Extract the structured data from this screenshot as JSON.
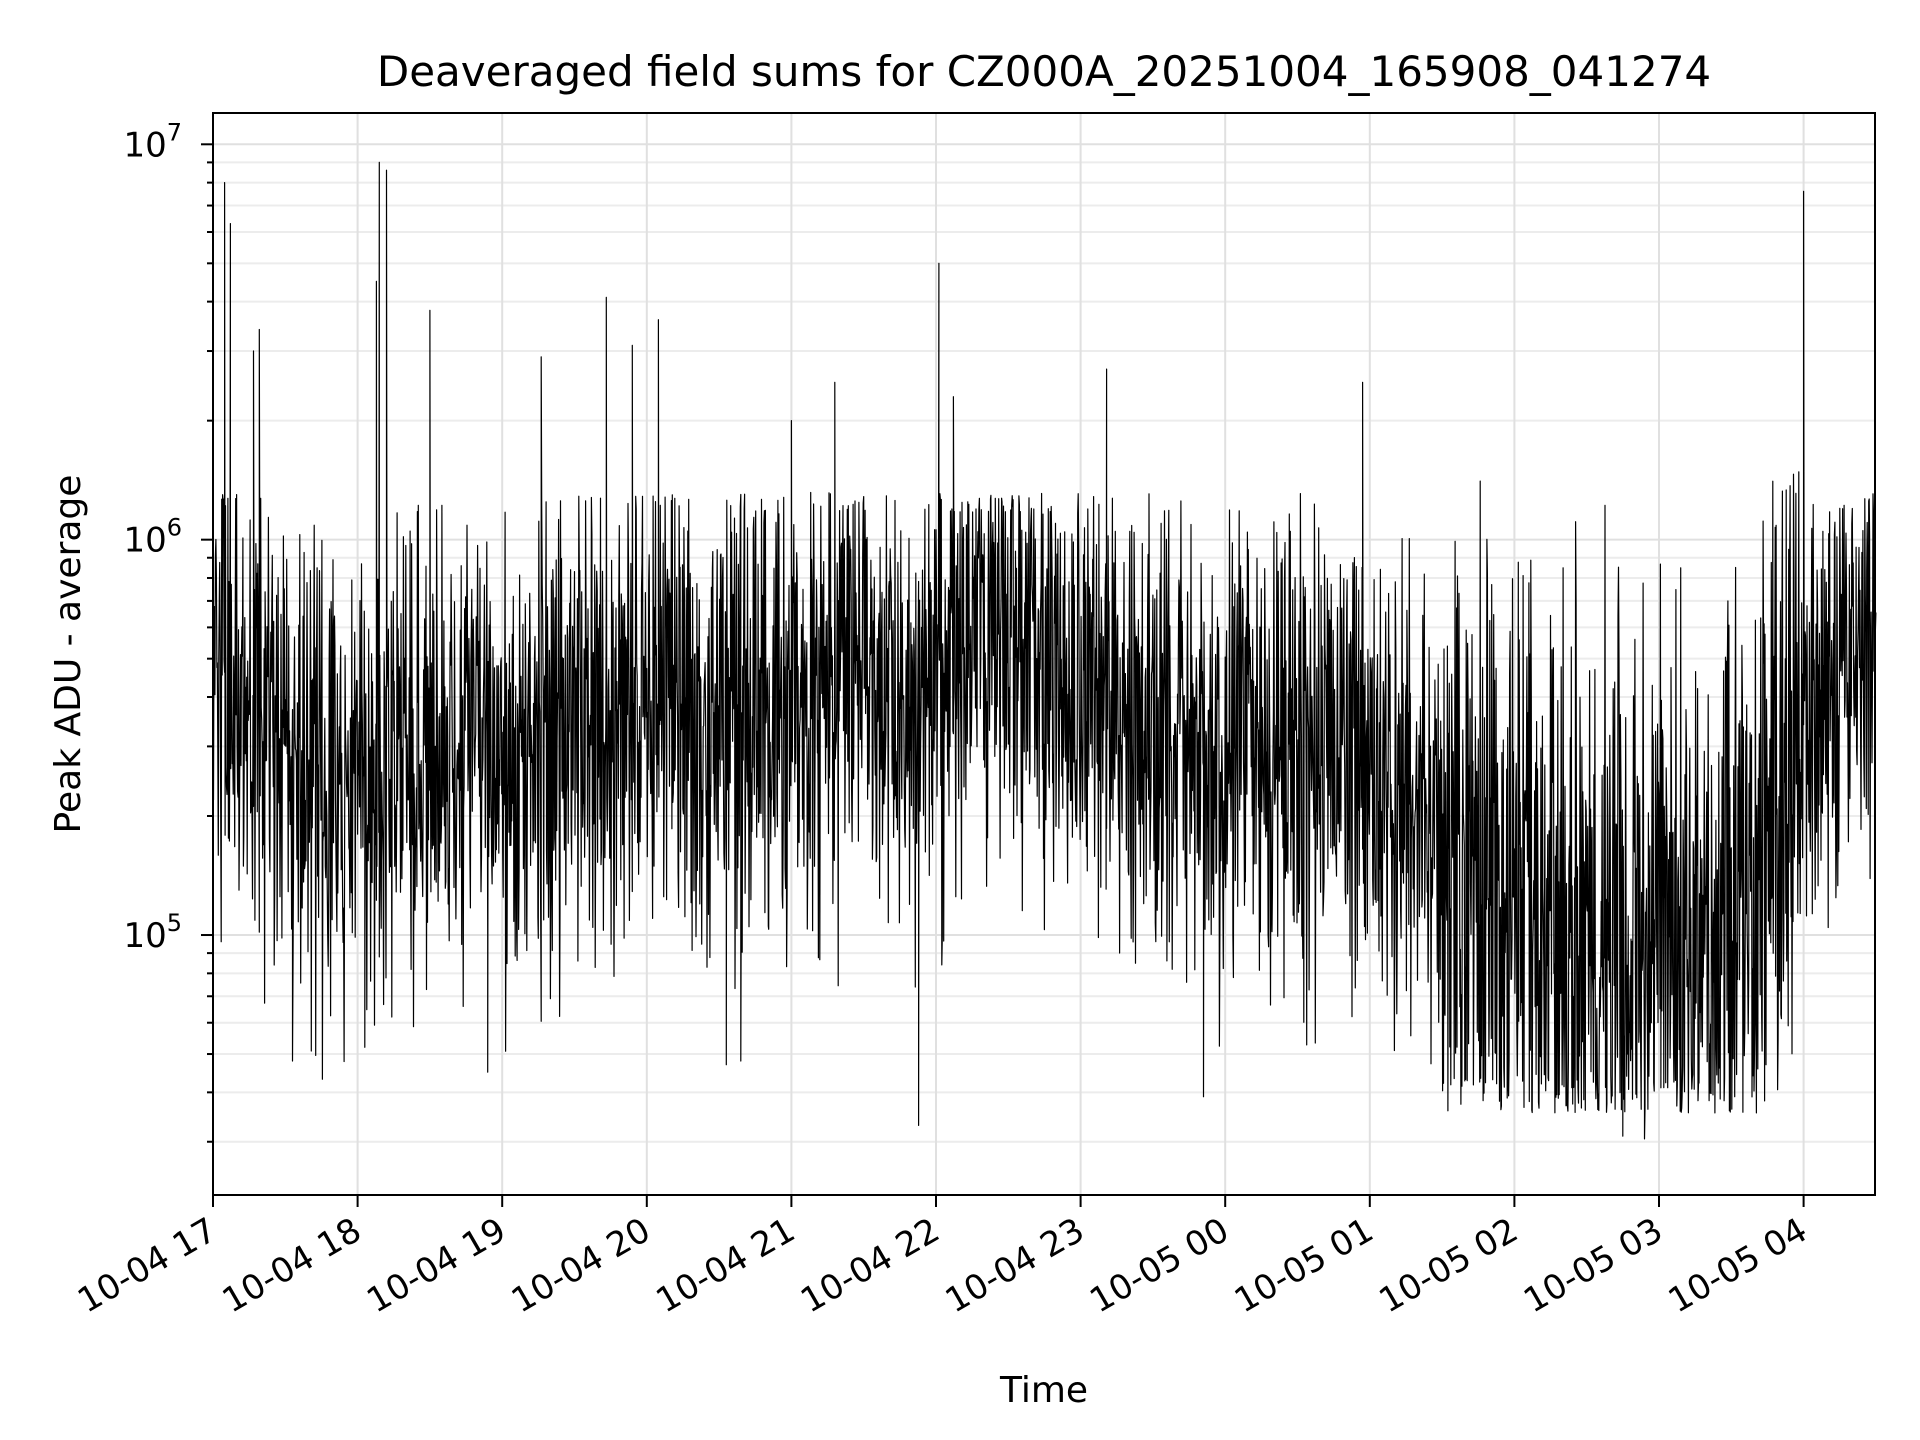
{
  "chart_data": {
    "type": "line",
    "title": "Deaveraged field sums for CZ000A_20251004_165908_041274",
    "xlabel": "Time",
    "ylabel": "Peak ADU - average",
    "yscale": "log",
    "ylim": [
      22000,
      12000000
    ],
    "xlim_hours": [
      0,
      11.5
    ],
    "grid": true,
    "xticks": [
      "10-04 17",
      "10-04 18",
      "10-04 19",
      "10-04 20",
      "10-04 21",
      "10-04 22",
      "10-04 23",
      "10-05 00",
      "10-05 01",
      "10-05 02",
      "10-05 03",
      "10-05 04"
    ],
    "yticks": [
      {
        "value": 100000,
        "base": "10",
        "exp": "5"
      },
      {
        "value": 1000000,
        "base": "10",
        "exp": "6"
      },
      {
        "value": 10000000,
        "base": "10",
        "exp": "7"
      }
    ],
    "series": [
      {
        "name": "Peak ADU - average",
        "color": "#000000",
        "samples_per_hour": 300,
        "baseline_log10": [
          {
            "t": 0.0,
            "v": 5.72
          },
          {
            "t": 0.5,
            "v": 5.45
          },
          {
            "t": 1.0,
            "v": 5.38
          },
          {
            "t": 1.5,
            "v": 5.5
          },
          {
            "t": 2.0,
            "v": 5.45
          },
          {
            "t": 2.5,
            "v": 5.55
          },
          {
            "t": 3.0,
            "v": 5.6
          },
          {
            "t": 3.5,
            "v": 5.5
          },
          {
            "t": 4.0,
            "v": 5.55
          },
          {
            "t": 4.5,
            "v": 5.7
          },
          {
            "t": 5.0,
            "v": 5.62
          },
          {
            "t": 5.5,
            "v": 5.8
          },
          {
            "t": 6.0,
            "v": 5.65
          },
          {
            "t": 6.5,
            "v": 5.55
          },
          {
            "t": 7.0,
            "v": 5.45
          },
          {
            "t": 7.5,
            "v": 5.5
          },
          {
            "t": 8.0,
            "v": 5.45
          },
          {
            "t": 8.5,
            "v": 5.25
          },
          {
            "t": 9.0,
            "v": 5.0
          },
          {
            "t": 9.5,
            "v": 4.95
          },
          {
            "t": 10.0,
            "v": 4.95
          },
          {
            "t": 10.5,
            "v": 5.05
          },
          {
            "t": 11.0,
            "v": 5.55
          },
          {
            "t": 11.5,
            "v": 5.85
          }
        ],
        "spikes": [
          {
            "t": 0.08,
            "value": 8000000
          },
          {
            "t": 0.12,
            "value": 6300000
          },
          {
            "t": 0.28,
            "value": 3000000
          },
          {
            "t": 0.32,
            "value": 3400000
          },
          {
            "t": 1.15,
            "value": 9000000
          },
          {
            "t": 1.2,
            "value": 8600000
          },
          {
            "t": 1.13,
            "value": 4500000
          },
          {
            "t": 1.5,
            "value": 3800000
          },
          {
            "t": 2.27,
            "value": 2900000
          },
          {
            "t": 2.72,
            "value": 4100000
          },
          {
            "t": 2.9,
            "value": 3100000
          },
          {
            "t": 3.08,
            "value": 3600000
          },
          {
            "t": 4.0,
            "value": 2000000
          },
          {
            "t": 4.3,
            "value": 2500000
          },
          {
            "t": 5.02,
            "value": 5000000
          },
          {
            "t": 5.12,
            "value": 2300000
          },
          {
            "t": 6.18,
            "value": 2700000
          },
          {
            "t": 7.95,
            "value": 2500000
          },
          {
            "t": 11.0,
            "value": 7600000
          }
        ],
        "dips": [
          {
            "t": 0.55,
            "value": 48000
          },
          {
            "t": 1.05,
            "value": 52000
          },
          {
            "t": 1.9,
            "value": 45000
          },
          {
            "t": 3.55,
            "value": 47000
          },
          {
            "t": 3.65,
            "value": 48000
          },
          {
            "t": 4.88,
            "value": 33000
          },
          {
            "t": 6.85,
            "value": 39000
          },
          {
            "t": 9.75,
            "value": 31000
          },
          {
            "t": 9.9,
            "value": 30500
          }
        ]
      }
    ]
  }
}
